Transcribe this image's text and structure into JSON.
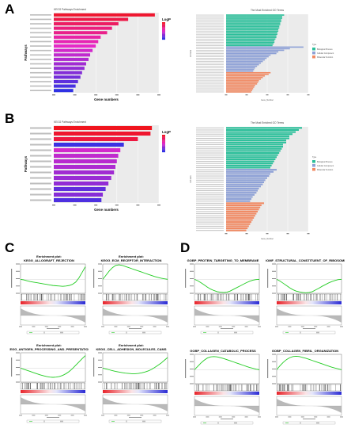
{
  "panels": {
    "A": {
      "letter": "A"
    },
    "B": {
      "letter": "B"
    },
    "C": {
      "letter": "C"
    },
    "D": {
      "letter": "D"
    }
  },
  "chart_data": [
    {
      "id": "A-kegg",
      "type": "bar",
      "orientation": "horizontal",
      "title": "KEGG Pathways Enrichment",
      "xlabel": "Gene numbers",
      "ylabel": "Pathways",
      "legend_title": "LogP",
      "values": [
        125,
        92,
        80,
        72,
        66,
        58,
        55,
        52,
        48,
        45,
        43,
        40,
        38,
        35,
        33,
        30,
        27,
        24
      ],
      "color_values": [
        0.05,
        0.12,
        0.2,
        0.28,
        0.32,
        0.4,
        0.44,
        0.5,
        0.55,
        0.6,
        0.64,
        0.68,
        0.72,
        0.76,
        0.8,
        0.86,
        0.92,
        0.98
      ],
      "xlim": [
        0,
        130
      ]
    },
    {
      "id": "A-go",
      "type": "bar",
      "orientation": "horizontal",
      "title": "The Most Enriched GO Terms",
      "xlabel": "Gene_Number",
      "ylabel": "GO term",
      "legend_title": "Type",
      "legend": [
        "Biological Process",
        "Cellular Component",
        "Molecular Function"
      ],
      "groups": [
        {
          "type": "Biological Process",
          "color": "#2bbf9a",
          "values": [
            60,
            58,
            58,
            57,
            57,
            56,
            56,
            55,
            55,
            54,
            54,
            53,
            53,
            52,
            52,
            51,
            50,
            50,
            49,
            48
          ]
        },
        {
          "type": "Cellular Component",
          "color": "#8ea1d6",
          "values": [
            80,
            66,
            60,
            54,
            52,
            46,
            44,
            42,
            40,
            38,
            36,
            34,
            32,
            30,
            29,
            28
          ]
        },
        {
          "type": "Molecular Function",
          "color": "#f08a64",
          "values": [
            46,
            44,
            40,
            38,
            36,
            34,
            33,
            32,
            30,
            29,
            28,
            27,
            26
          ]
        }
      ],
      "xlim": [
        0,
        85
      ]
    },
    {
      "id": "B-kegg",
      "type": "bar",
      "orientation": "horizontal",
      "title": "KEGG Pathways Enrichment",
      "xlabel": "Gene numbers",
      "ylabel": "Pathways",
      "legend_title": "LogP",
      "values": [
        14,
        13.8,
        12,
        10,
        9.5,
        9.2,
        9,
        8.8,
        8.6,
        8.2,
        7.8,
        7.4,
        7,
        6.8
      ],
      "color_values": [
        0.0,
        0.05,
        0.1,
        0.95,
        0.55,
        0.6,
        0.62,
        0.65,
        0.68,
        0.7,
        0.72,
        0.85,
        0.75,
        0.9
      ],
      "xlim": [
        0,
        15
      ]
    },
    {
      "id": "B-go",
      "type": "bar",
      "orientation": "horizontal",
      "title": "The Most Enriched GO Terms",
      "xlabel": "Gene_Number",
      "ylabel": "GO term",
      "legend_title": "Type",
      "legend": [
        "Biological Process",
        "Cellular Component",
        "Molecular Function"
      ],
      "groups": [
        {
          "type": "Biological Process",
          "color": "#2bbf9a",
          "values": [
            12,
            11.5,
            11,
            10.5,
            10,
            10,
            9.5,
            9.5,
            9,
            9,
            8.8,
            8.6,
            8.4,
            8.2,
            8,
            7.8,
            7.6,
            7.4,
            7.2,
            7
          ]
        },
        {
          "type": "Cellular Component",
          "color": "#8ea1d6",
          "values": [
            8,
            7.5,
            7,
            6.8,
            6.5,
            6.2,
            6,
            5.8,
            5.5,
            5.2,
            5,
            4.8,
            4.5,
            4.2,
            4,
            3.8
          ]
        },
        {
          "type": "Molecular Function",
          "color": "#f08a64",
          "values": [
            6,
            5.6,
            5.4,
            5.2,
            5,
            4.8,
            4.6,
            4.4,
            4.2,
            4,
            3.8,
            3.6,
            3.4,
            3.2
          ]
        }
      ],
      "xlim": [
        0,
        13
      ]
    },
    {
      "id": "C1",
      "type": "line",
      "title": "Enrichment plot: KEGG_ALLOGRAFT_REJECTION",
      "shape": "rise-end",
      "values": [
        0,
        -0.02,
        -0.05,
        -0.08,
        -0.1,
        -0.12,
        -0.14,
        -0.16,
        -0.18,
        -0.2,
        -0.22,
        -0.23,
        -0.24,
        -0.25,
        -0.24,
        -0.22,
        -0.18,
        -0.1,
        0.05,
        0.25,
        0.45
      ]
    },
    {
      "id": "C2",
      "type": "line",
      "title": "Enrichment plot: KEGG_ECM_RECEPTOR_INTERACTION",
      "shape": "peak-early",
      "values": [
        0,
        0.15,
        0.3,
        0.42,
        0.5,
        0.52,
        0.5,
        0.46,
        0.42,
        0.38,
        0.34,
        0.3,
        0.26,
        0.22,
        0.18,
        0.14,
        0.1,
        0.07,
        0.04,
        0.02,
        0
      ]
    },
    {
      "id": "C3",
      "type": "line",
      "title": "Enrichment plot: KEGG_ANTIGEN_PROCESSING_AND_PRESENTATION",
      "values": [
        0,
        -0.04,
        -0.08,
        -0.12,
        -0.16,
        -0.2,
        -0.24,
        -0.27,
        -0.3,
        -0.32,
        -0.33,
        -0.32,
        -0.3,
        -0.26,
        -0.2,
        -0.12,
        -0.02,
        0.1,
        0.22,
        0.34,
        0.45
      ]
    },
    {
      "id": "C4",
      "type": "line",
      "title": "Enrichment plot: KEGG_CELL_ADHESION_MOLECULES_CAMS",
      "values": [
        0,
        -0.03,
        -0.06,
        -0.09,
        -0.12,
        -0.14,
        -0.16,
        -0.18,
        -0.19,
        -0.2,
        -0.2,
        -0.19,
        -0.17,
        -0.14,
        -0.1,
        -0.05,
        0.02,
        0.1,
        0.18,
        0.28,
        0.38
      ]
    },
    {
      "id": "D1",
      "type": "line",
      "title": "GOBP_PROTEIN_TARGETING_TO_MEMBRANE",
      "values": [
        0,
        -0.05,
        -0.12,
        -0.2,
        -0.28,
        -0.35,
        -0.4,
        -0.44,
        -0.46,
        -0.47,
        -0.46,
        -0.42,
        -0.36,
        -0.3,
        -0.24,
        -0.18,
        -0.12,
        -0.07,
        -0.03,
        -0.01,
        0
      ]
    },
    {
      "id": "D2",
      "type": "line",
      "title": "GOMF_STRUCTURAL_CONSTITUENT_OF_RIBOSOME",
      "values": [
        0,
        -0.06,
        -0.14,
        -0.22,
        -0.3,
        -0.37,
        -0.42,
        -0.45,
        -0.47,
        -0.48,
        -0.47,
        -0.44,
        -0.38,
        -0.32,
        -0.25,
        -0.19,
        -0.13,
        -0.08,
        -0.04,
        -0.01,
        0
      ]
    },
    {
      "id": "D3",
      "type": "line",
      "title": "GOBP_COLLAGEN_CATABOLIC_PROCESS",
      "values": [
        0,
        0.12,
        0.24,
        0.34,
        0.42,
        0.46,
        0.47,
        0.46,
        0.43,
        0.4,
        0.36,
        0.32,
        0.28,
        0.24,
        0.2,
        0.16,
        0.12,
        0.08,
        0.05,
        0.02,
        0
      ]
    },
    {
      "id": "D4",
      "type": "line",
      "title": "GOBP_COLLAGEN_FIBRIL_ORGANIZATION",
      "values": [
        0,
        0.14,
        0.26,
        0.36,
        0.43,
        0.47,
        0.48,
        0.47,
        0.44,
        0.41,
        0.37,
        0.33,
        0.29,
        0.25,
        0.21,
        0.17,
        0.13,
        0.09,
        0.06,
        0.03,
        0
      ]
    }
  ]
}
